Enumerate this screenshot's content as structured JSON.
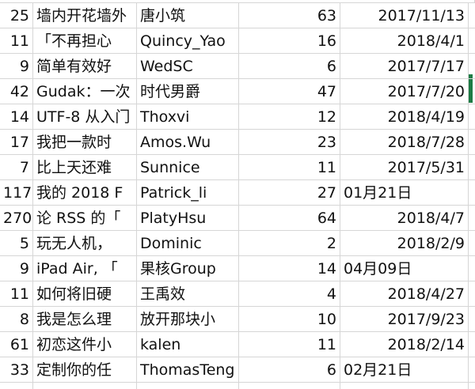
{
  "table": {
    "rows": [
      [
        25,
        "墙内开花墙外",
        "唐小筑",
        63,
        "2017/11/13"
      ],
      [
        11,
        "「不再担心",
        "Quincy_Yao",
        16,
        "2018/4/1"
      ],
      [
        9,
        "简单有效好",
        "WedSC",
        6,
        "2017/7/17"
      ],
      [
        42,
        "Gudak：一次",
        "时代男爵",
        47,
        "2017/7/20"
      ],
      [
        14,
        "UTF-8 从入门",
        "Thoxvi",
        12,
        "2018/4/19"
      ],
      [
        17,
        "我把一款时",
        "Amos.Wu",
        23,
        "2018/7/28"
      ],
      [
        7,
        "比上天还难",
        "Sunnice",
        11,
        "2017/5/31"
      ],
      [
        117,
        "我的 2018 F",
        "Patrick_li",
        27,
        "01月21日"
      ],
      [
        270,
        "论 RSS 的「",
        "PlatyHsu",
        64,
        "2018/4/7"
      ],
      [
        5,
        "玩无人机，",
        "Dominic",
        2,
        "2018/2/9"
      ],
      [
        9,
        "iPad Air, 「",
        "果核Group",
        14,
        "04月09日"
      ],
      [
        11,
        "如何将旧硬",
        "王禹效",
        4,
        "2018/4/27"
      ],
      [
        8,
        "我是怎么理",
        "放开那块小",
        10,
        "2017/9/23"
      ],
      [
        61,
        "初恋这件小",
        "kalen",
        11,
        "2018/2/14"
      ],
      [
        33,
        "定制你的任",
        "ThomasTeng",
        6,
        "02月21日"
      ]
    ]
  }
}
